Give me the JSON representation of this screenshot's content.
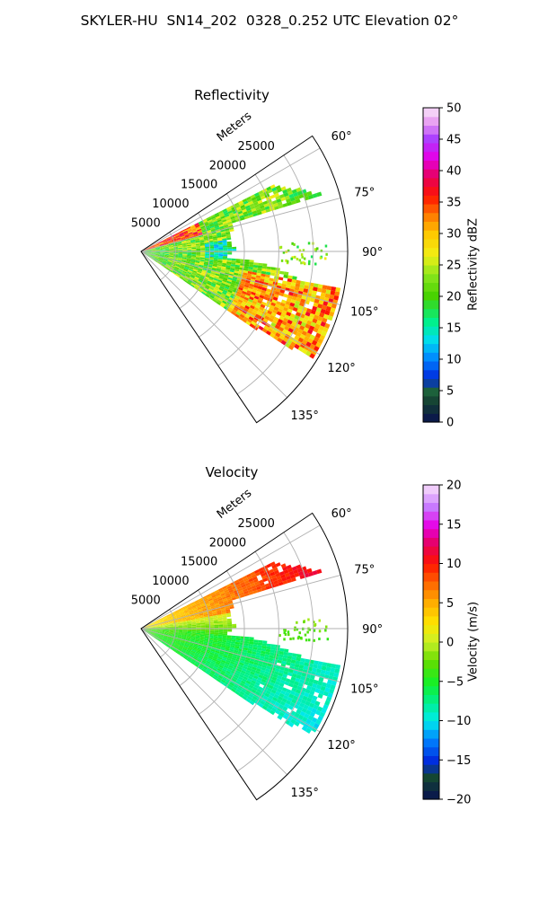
{
  "figure": {
    "title": "SKYLER-HU  SN14_202  0328_0.252 UTC Elevation 02°"
  },
  "chart_data": [
    {
      "type": "heatmap",
      "projection": "polar-sector",
      "title": "Reflectivity",
      "radial_axis_label": "Meters",
      "radial_ticks": [
        5000,
        10000,
        15000,
        20000,
        25000
      ],
      "radial_tick_labels": [
        "5000",
        "10000",
        "15000",
        "20000",
        "25000"
      ],
      "range_max": 30000,
      "azimuth_ticks": [
        60,
        75,
        90,
        105,
        120,
        135
      ],
      "azimuth_tick_labels": [
        "60°",
        "75°",
        "90°",
        "105°",
        "120°",
        "135°"
      ],
      "azimuth_range": [
        56,
        146
      ],
      "grid": true,
      "colorbar": {
        "label": "Reflectivity dBZ",
        "min": 0,
        "max": 50,
        "ticks": [
          0,
          5,
          10,
          15,
          20,
          25,
          30,
          35,
          40,
          45,
          50
        ],
        "tick_labels": [
          "0",
          "5",
          "10",
          "15",
          "20",
          "25",
          "30",
          "35",
          "40",
          "45",
          "50"
        ]
      }
    },
    {
      "type": "heatmap",
      "projection": "polar-sector",
      "title": "Velocity",
      "radial_axis_label": "Meters",
      "radial_ticks": [
        5000,
        10000,
        15000,
        20000,
        25000
      ],
      "radial_tick_labels": [
        "5000",
        "10000",
        "15000",
        "20000",
        "25000"
      ],
      "range_max": 30000,
      "azimuth_ticks": [
        60,
        75,
        90,
        105,
        120,
        135
      ],
      "azimuth_tick_labels": [
        "60°",
        "75°",
        "90°",
        "105°",
        "120°",
        "135°"
      ],
      "azimuth_range": [
        56,
        146
      ],
      "grid": true,
      "colorbar": {
        "label": "Velocity (m/s)",
        "min": -20,
        "max": 20,
        "ticks": [
          -20,
          -15,
          -10,
          -5,
          0,
          5,
          10,
          15,
          20
        ],
        "tick_labels": [
          "−20",
          "−15",
          "−10",
          "−5",
          "0",
          "5",
          "10",
          "15",
          "20"
        ]
      }
    }
  ]
}
